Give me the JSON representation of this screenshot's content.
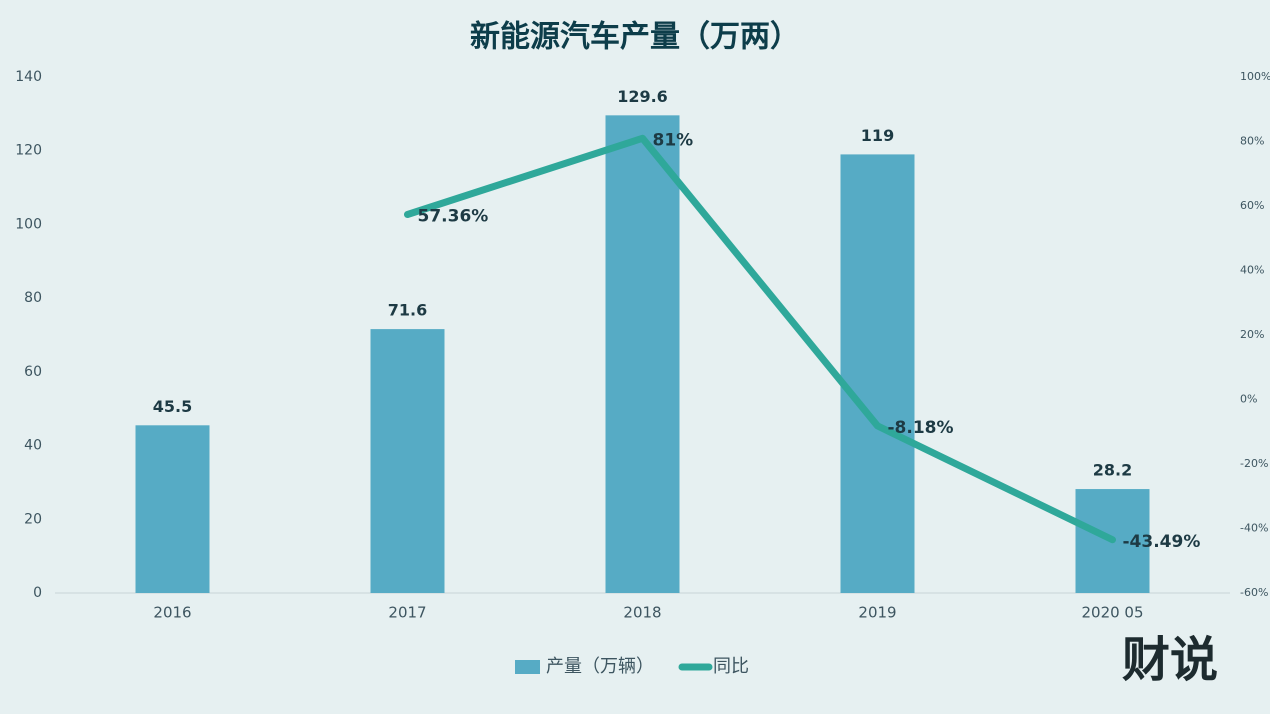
{
  "chart_data": {
    "type": "bar",
    "title": "新能源汽车产量（万两）",
    "categories": [
      "2016",
      "2017",
      "2018",
      "2019",
      "2020 05"
    ],
    "series": [
      {
        "name": "产量（万辆）",
        "type": "bar",
        "color": "#56abc5",
        "values": [
          45.5,
          71.6,
          129.6,
          119,
          28.2
        ]
      },
      {
        "name": "同比",
        "type": "line",
        "axis": "y2",
        "color": "#2fa89a",
        "values": [
          null,
          57.36,
          81,
          -8.18,
          -43.49
        ],
        "value_labels": [
          null,
          "57.36%",
          "81%",
          "-8.18%",
          "-43.49%"
        ]
      }
    ],
    "ylim": [
      0,
      140
    ],
    "yticks": [
      0,
      20,
      40,
      60,
      80,
      100,
      120,
      140
    ],
    "y2lim": [
      -60,
      100
    ],
    "y2ticks": [
      {
        "value": -60,
        "label": "-60%"
      },
      {
        "value": -40,
        "label": "-40%"
      },
      {
        "value": -20,
        "label": "-20%"
      },
      {
        "value": 0,
        "label": "0%"
      },
      {
        "value": 20,
        "label": "20%"
      },
      {
        "value": 40,
        "label": "40%"
      },
      {
        "value": 60,
        "label": "60%"
      },
      {
        "value": 80,
        "label": "80%"
      },
      {
        "value": 100,
        "label": "100%"
      }
    ],
    "legend": "bottom"
  },
  "logo": "财说"
}
